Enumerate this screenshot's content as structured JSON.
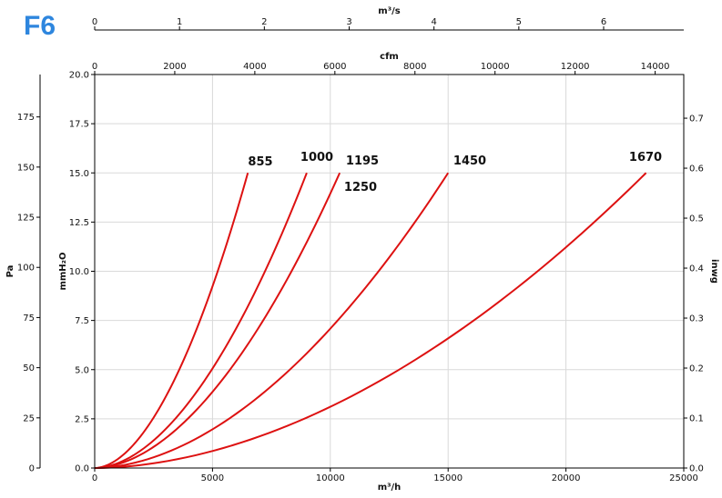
{
  "logo": "F6",
  "chart_data": {
    "type": "line",
    "x": [
      0,
      2500,
      5000,
      7500,
      10000,
      12500,
      15000,
      17500,
      20000,
      22500,
      25000
    ],
    "xlabel": "m³/h",
    "xlim": [
      0,
      25000
    ],
    "ylabel": "mmH₂O",
    "ylim": [
      0,
      20
    ],
    "grid": true,
    "series": [
      {
        "name": "855",
        "label_text": "855",
        "max_x": 6500,
        "max_y": 15
      },
      {
        "name": "1000",
        "label_text": "1000",
        "max_x": 9000,
        "max_y": 15
      },
      {
        "name": "1195",
        "label_text": "1195",
        "max_x": 10400,
        "max_y": 15
      },
      {
        "name": "1450",
        "label_text": "1450",
        "max_x": 15000,
        "max_y": 15
      },
      {
        "name": "1670",
        "label_text": "1670",
        "max_x": 23400,
        "max_y": 15
      }
    ],
    "annotations": [
      "1250"
    ],
    "x_ticks": [
      "0",
      "5000",
      "10000",
      "15000",
      "20000",
      "25000"
    ],
    "y_ticks": [
      "0.0",
      "2.5",
      "5.0",
      "7.5",
      "10.0",
      "12.5",
      "15.0",
      "17.5",
      "20.0"
    ],
    "secondary_axes": {
      "cfm": {
        "label": "cfm",
        "ticks": [
          "0",
          "2000",
          "4000",
          "6000",
          "8000",
          "10000",
          "12000",
          "14000"
        ]
      },
      "m3s": {
        "label": "m³/s",
        "ticks": [
          "0",
          "1",
          "2",
          "3",
          "4",
          "5",
          "6"
        ]
      },
      "pa": {
        "label": "Pa",
        "ticks": [
          "0",
          "25",
          "50",
          "75",
          "100",
          "125",
          "150",
          "175"
        ]
      },
      "inwg": {
        "label": "inwg",
        "ticks": [
          "0.0",
          "0.1",
          "0.2",
          "0.3",
          "0.4",
          "0.5",
          "0.6",
          "0.7"
        ]
      }
    },
    "colors": {
      "curve": "#dd1111",
      "grid": "#d9d9d9",
      "axis": "#000000",
      "logo": "#2e86de"
    }
  }
}
